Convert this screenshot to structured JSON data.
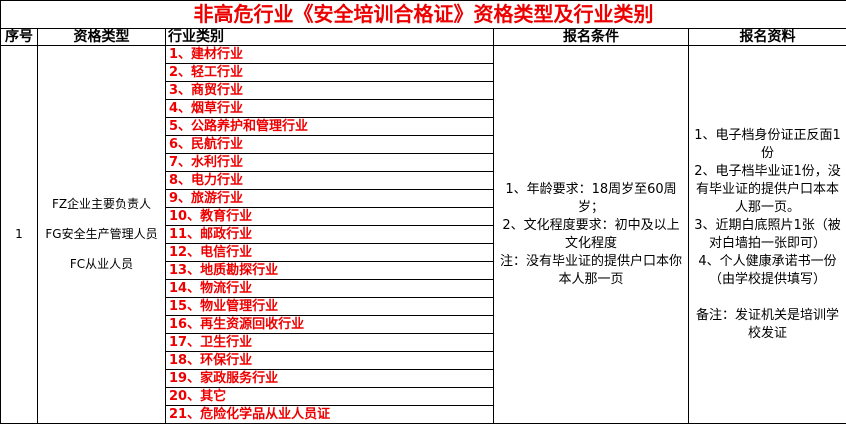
{
  "title": "非高危行业《安全培训合格证》资格类型及行业类别",
  "headers": {
    "seq": "序号",
    "qual": "资格类型",
    "industry": "行业类别",
    "conditions": "报名条件",
    "materials": "报名资料"
  },
  "row": {
    "seq": "1",
    "qual_types": [
      "FZ企业主要负责人",
      "FG安全生产管理人员",
      "FC从业人员"
    ],
    "industries": [
      "1、建材行业",
      "2、轻工行业",
      "3、商贸行业",
      "4、烟草行业",
      "5、公路养护和管理行业",
      "6、民航行业",
      "7、水利行业",
      "8、电力行业",
      "9、旅游行业",
      "10、教育行业",
      "11、邮政行业",
      "12、电信行业",
      "13、地质勘探行业",
      "14、物流行业",
      "15、物业管理行业",
      "16、再生资源回收行业",
      "17、卫生行业",
      "18、环保行业",
      "19、家政服务行业",
      "20、其它",
      "21、危险化学品从业人员证"
    ],
    "conditions": "1、年龄要求：18周岁至60周岁；\n2、文化程度要求：初中及以上文化程度\n注：没有毕业证的提供户口本你本人那一页",
    "materials": "1、电子档身份证正反面1份\n2、电子档毕业证1份，没有毕业证的提供户口本本人那一页。\n3、近期白底照片1张（被对白墙拍一张即可）\n4、个人健康承诺书一份（由学校提供填写）\n\n备注：发证机关是培训学校发证"
  }
}
